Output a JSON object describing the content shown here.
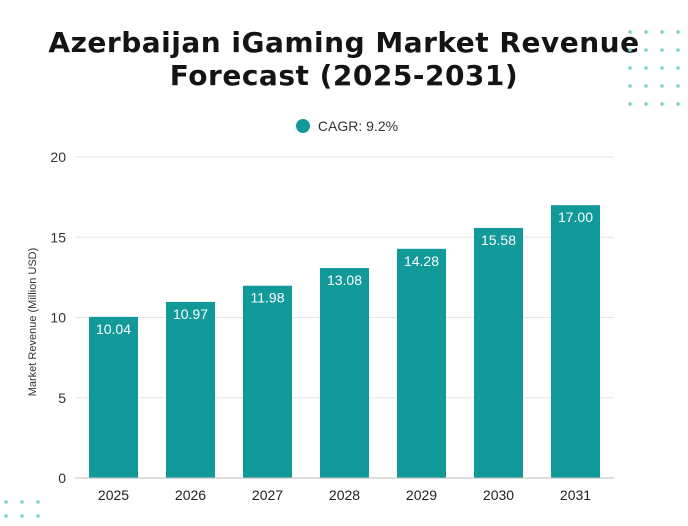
{
  "chart_data": {
    "type": "bar",
    "title": [
      "Azerbaijan iGaming Market Revenue",
      "Forecast (2025-2031)"
    ],
    "legend": [
      {
        "label": "CAGR: 9.2%",
        "color": "#12999a"
      }
    ],
    "legend_position": "top-center",
    "ylabel": "Market Revenue (Million USD)",
    "xlabel": "",
    "categories": [
      "2025",
      "2026",
      "2027",
      "2028",
      "2029",
      "2030",
      "2031"
    ],
    "series": [
      {
        "values": [
          10.04,
          10.97,
          11.98,
          13.08,
          14.28,
          15.58,
          17.0
        ]
      }
    ],
    "data_labels": [
      "10.04",
      "10.97",
      "11.98",
      "13.08",
      "14.28",
      "15.58",
      "17.00"
    ],
    "ylim": [
      0,
      20
    ],
    "yticks": [
      "0",
      "5",
      "10",
      "15",
      "20"
    ],
    "grid": true,
    "bar_color": "#12999a"
  }
}
